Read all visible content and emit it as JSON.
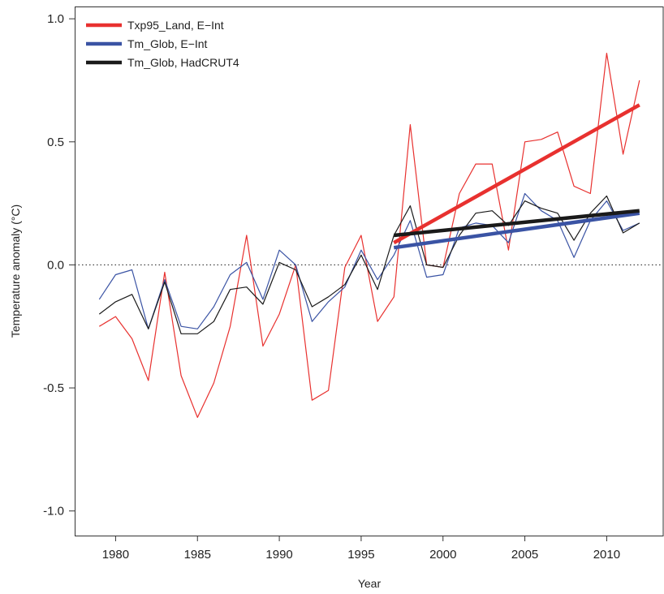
{
  "chart_data": {
    "type": "line",
    "xlabel": "Year",
    "ylabel": "Temperature anomaly (°C)",
    "xlim": [
      1977.5,
      2013.5
    ],
    "ylim": [
      -1.1,
      1.05
    ],
    "xticks": [
      1980,
      1985,
      1990,
      1995,
      2000,
      2005,
      2010
    ],
    "yticks": [
      -1.0,
      -0.5,
      0.0,
      0.5,
      1.0
    ],
    "ytick_labels": [
      "-1.0",
      "-0.5",
      "0.0",
      "0.5",
      "1.0"
    ],
    "zero_line": {
      "y": 0.0,
      "style": "dotted"
    },
    "grid": false,
    "legend_position": "top-left",
    "x": [
      1979,
      1980,
      1981,
      1982,
      1983,
      1984,
      1985,
      1986,
      1987,
      1988,
      1989,
      1990,
      1991,
      1992,
      1993,
      1994,
      1995,
      1996,
      1997,
      1998,
      1999,
      2000,
      2001,
      2002,
      2003,
      2004,
      2005,
      2006,
      2007,
      2008,
      2009,
      2010,
      2011,
      2012
    ],
    "series": [
      {
        "name": "Txp95_Land, E−Int",
        "color": "#e8312f",
        "values": [
          -0.25,
          -0.21,
          -0.3,
          -0.47,
          -0.03,
          -0.45,
          -0.62,
          -0.48,
          -0.25,
          0.12,
          -0.33,
          -0.2,
          0.0,
          -0.55,
          -0.51,
          -0.01,
          0.12,
          -0.23,
          -0.13,
          0.57,
          0.0,
          -0.01,
          0.29,
          0.41,
          0.41,
          0.06,
          0.5,
          0.51,
          0.54,
          0.32,
          0.29,
          0.86,
          0.45,
          0.75
        ],
        "trend": {
          "x": [
            1997,
            2012
          ],
          "y": [
            0.09,
            0.65
          ]
        }
      },
      {
        "name": "Tm_Glob, E−Int",
        "color": "#3a53a4",
        "values": [
          -0.14,
          -0.04,
          -0.02,
          -0.26,
          -0.06,
          -0.25,
          -0.26,
          -0.17,
          -0.04,
          0.01,
          -0.14,
          0.06,
          0.0,
          -0.23,
          -0.15,
          -0.09,
          0.06,
          -0.06,
          0.04,
          0.18,
          -0.05,
          -0.04,
          0.15,
          0.17,
          0.16,
          0.09,
          0.29,
          0.22,
          0.18,
          0.03,
          0.18,
          0.26,
          0.14,
          0.17
        ],
        "trend": {
          "x": [
            1997,
            2012
          ],
          "y": [
            0.07,
            0.21
          ]
        }
      },
      {
        "name": "Tm_Glob, HadCRUT4",
        "color": "#1a1a1a",
        "values": [
          -0.2,
          -0.15,
          -0.12,
          -0.26,
          -0.07,
          -0.28,
          -0.28,
          -0.23,
          -0.1,
          -0.09,
          -0.16,
          0.01,
          -0.02,
          -0.17,
          -0.13,
          -0.08,
          0.04,
          -0.1,
          0.12,
          0.24,
          0.0,
          -0.01,
          0.12,
          0.21,
          0.22,
          0.16,
          0.26,
          0.23,
          0.21,
          0.1,
          0.21,
          0.28,
          0.13,
          0.17
        ],
        "trend": {
          "x": [
            1997,
            2012
          ],
          "y": [
            0.12,
            0.22
          ]
        }
      }
    ]
  }
}
